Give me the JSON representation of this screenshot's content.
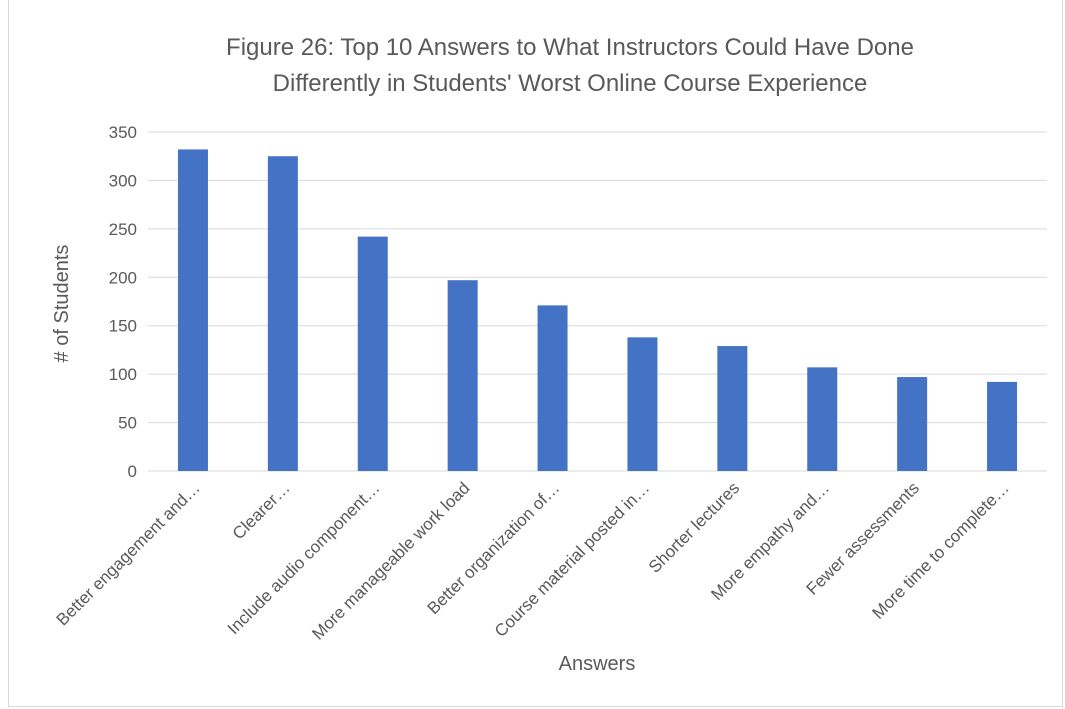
{
  "chart_data": {
    "type": "bar",
    "title_lines": [
      "Figure 26: Top 10 Answers to What Instructors Could Have Done",
      "Differently in Students' Worst Online Course Experience"
    ],
    "xlabel": "Answers",
    "ylabel": "# of Students",
    "ylim": [
      0,
      350
    ],
    "yticks": [
      0,
      50,
      100,
      150,
      200,
      250,
      300,
      350
    ],
    "grid": true,
    "legend": "none",
    "bar_color": "#4472C4",
    "categories": [
      "Better engagement and…",
      "Clearer…",
      "Include audio component…",
      "More manageable work load",
      "Better organization of…",
      "Course material posted in…",
      "Shorter lectures",
      "More empathy and…",
      "Fewer assessments",
      "More time to complete…"
    ],
    "values": [
      332,
      325,
      242,
      197,
      171,
      138,
      129,
      107,
      97,
      92
    ]
  }
}
